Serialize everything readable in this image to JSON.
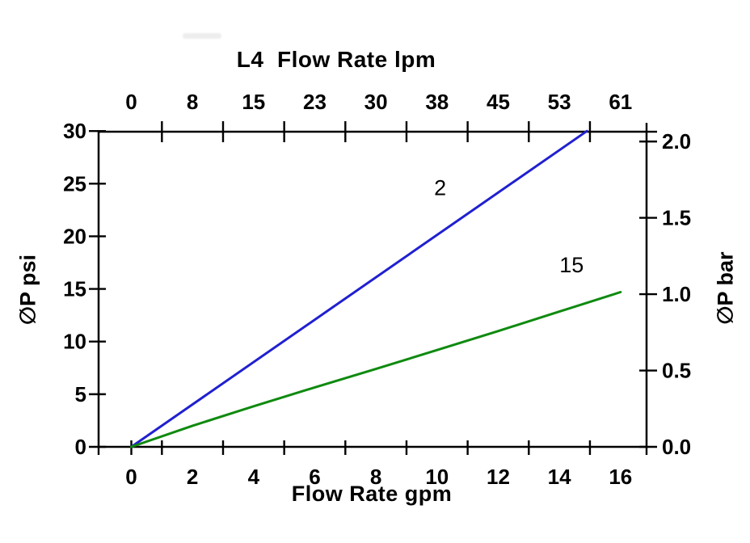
{
  "page": {
    "background": "#ffffff"
  },
  "chart_data": {
    "type": "line",
    "title": "L4  Flow Rate lpm",
    "grid": false,
    "legend": "none",
    "axis_color": "#000000",
    "x_bottom": {
      "label": "Flow Rate gpm",
      "tick_labels": [
        "0",
        "2",
        "4",
        "6",
        "8",
        "10",
        "12",
        "14",
        "16"
      ],
      "tick_values": [
        0,
        2,
        4,
        6,
        8,
        10,
        12,
        14,
        16
      ],
      "range": [
        0,
        16
      ],
      "tick_mark_values": [
        0,
        1,
        3,
        5,
        7,
        9,
        11,
        13,
        15
      ]
    },
    "x_top": {
      "unit": "lpm",
      "tick_labels": [
        "0",
        "8",
        "15",
        "23",
        "30",
        "38",
        "45",
        "53",
        "61"
      ],
      "tick_label_positions_gpm": [
        0,
        2,
        4,
        6,
        8,
        10,
        12,
        14,
        16
      ],
      "tick_mark_values_gpm": [
        1,
        3,
        5,
        7,
        9,
        11,
        13,
        15
      ]
    },
    "y_left": {
      "label": "∅P psi",
      "tick_labels": [
        "0",
        "5",
        "10",
        "15",
        "20",
        "25",
        "30"
      ],
      "tick_values": [
        0,
        5,
        10,
        15,
        20,
        25,
        30
      ],
      "range": [
        0,
        30
      ]
    },
    "y_right": {
      "label": "∅P bar",
      "tick_labels": [
        "0.0",
        "0.5",
        "1.0",
        "1.5",
        "2.0"
      ],
      "tick_values_bar": [
        0.0,
        0.5,
        1.0,
        1.5,
        2.0
      ],
      "psi_per_bar": 14.5038
    },
    "series": [
      {
        "name": "2",
        "color": "#2020d0",
        "points_gpm_psi": [
          [
            0,
            0
          ],
          [
            14.9,
            30
          ]
        ],
        "label": {
          "text": "2",
          "gpm": 10.1,
          "psi": 23.9
        }
      },
      {
        "name": "15",
        "color": "#0f8a0f",
        "points_gpm_psi": [
          [
            0,
            0
          ],
          [
            2,
            2.0
          ],
          [
            4,
            3.85
          ],
          [
            6,
            5.65
          ],
          [
            8,
            7.4
          ],
          [
            10,
            9.2
          ],
          [
            12,
            11.0
          ],
          [
            14,
            12.85
          ],
          [
            16,
            14.7
          ]
        ],
        "label": {
          "text": "15",
          "gpm": 14.4,
          "psi": 16.6
        }
      }
    ]
  }
}
